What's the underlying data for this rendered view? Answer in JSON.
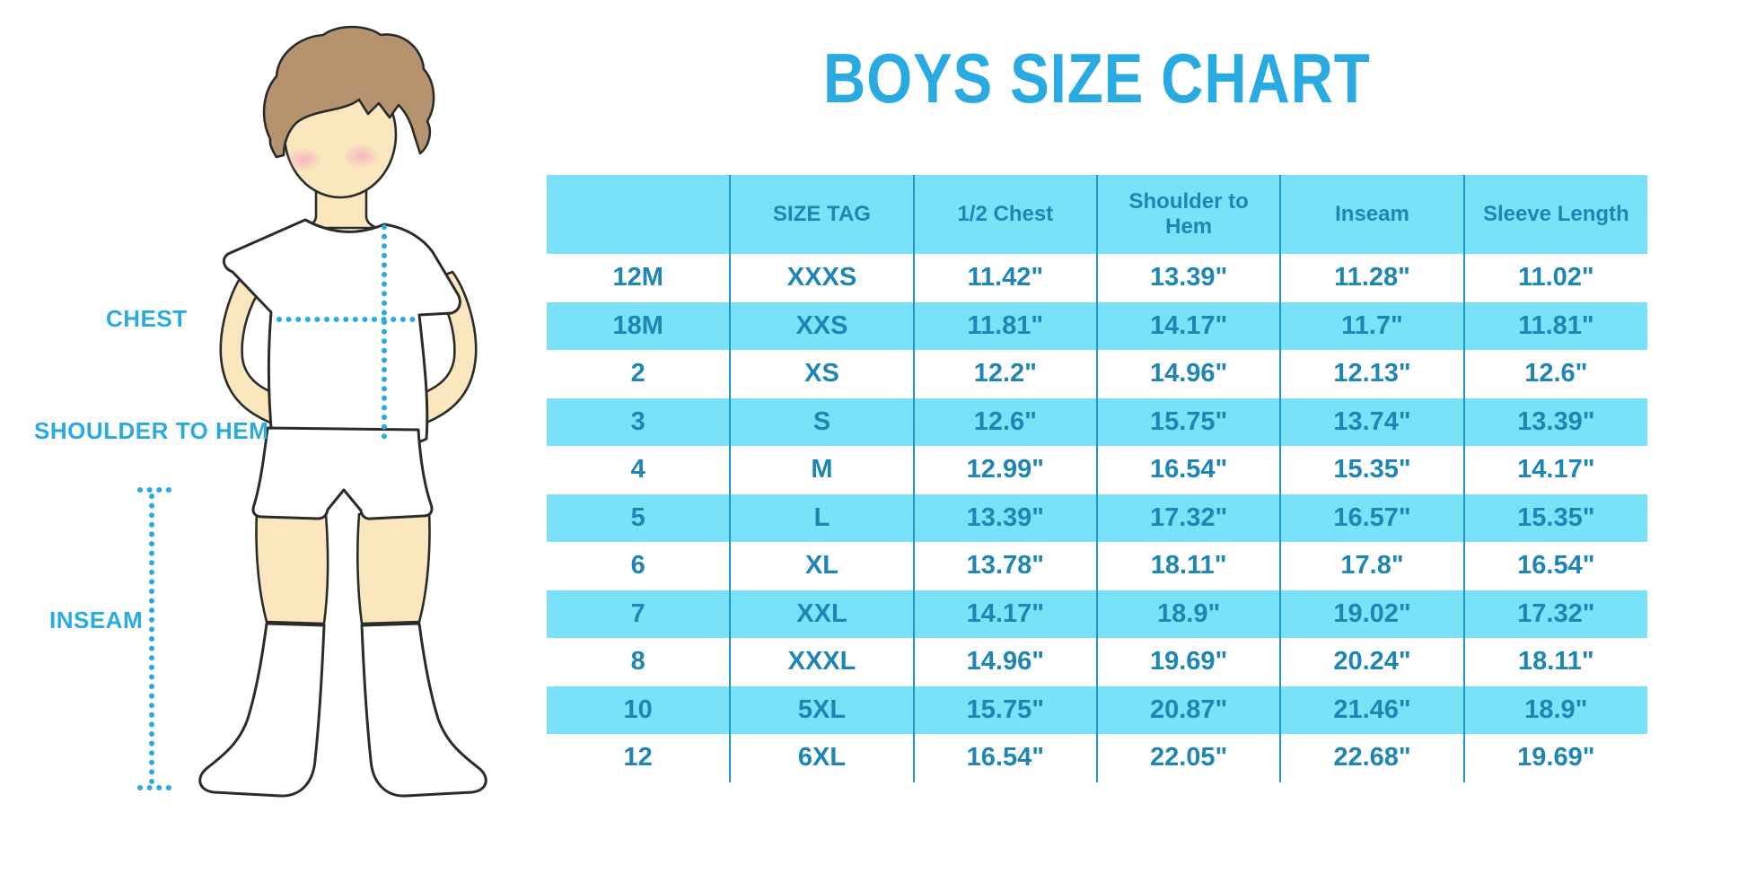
{
  "title": "BOYS SIZE CHART",
  "colors": {
    "accent": "#29abe2",
    "band": "#7ae2f8",
    "table-text": "#1e86b5",
    "divider": "#2196c9",
    "skin": "#fbe7bd",
    "hair": "#b6936f",
    "blush": "#f3a9c1",
    "outline": "#2b2b2b"
  },
  "diagram": {
    "labels": {
      "chest": "CHEST",
      "shoulder_to_hem": "SHOULDER TO HEM",
      "inseam": "INSEAM"
    }
  },
  "chart_data": {
    "type": "table",
    "title": "BOYS SIZE CHART",
    "columns": [
      "",
      "SIZE TAG",
      "1/2 Chest",
      "Shoulder to Hem",
      "Inseam",
      "Sleeve Length"
    ],
    "rows": [
      [
        "12M",
        "XXXS",
        "11.42\"",
        "13.39\"",
        "11.28\"",
        "11.02\""
      ],
      [
        "18M",
        "XXS",
        "11.81\"",
        "14.17\"",
        "11.7\"",
        "11.81\""
      ],
      [
        "2",
        "XS",
        "12.2\"",
        "14.96\"",
        "12.13\"",
        "12.6\""
      ],
      [
        "3",
        "S",
        "12.6\"",
        "15.75\"",
        "13.74\"",
        "13.39\""
      ],
      [
        "4",
        "M",
        "12.99\"",
        "16.54\"",
        "15.35\"",
        "14.17\""
      ],
      [
        "5",
        "L",
        "13.39\"",
        "17.32\"",
        "16.57\"",
        "15.35\""
      ],
      [
        "6",
        "XL",
        "13.78\"",
        "18.11\"",
        "17.8\"",
        "16.54\""
      ],
      [
        "7",
        "XXL",
        "14.17\"",
        "18.9\"",
        "19.02\"",
        "17.32\""
      ],
      [
        "8",
        "XXXL",
        "14.96\"",
        "19.69\"",
        "20.24\"",
        "18.11\""
      ],
      [
        "10",
        "5XL",
        "15.75\"",
        "20.87\"",
        "21.46\"",
        "18.9\""
      ],
      [
        "12",
        "6XL",
        "16.54\"",
        "22.05\"",
        "22.68\"",
        "19.69\""
      ]
    ],
    "stripe_pattern": "header and alternate rows (18M, 3, 5, 7, 10) highlighted cyan"
  }
}
